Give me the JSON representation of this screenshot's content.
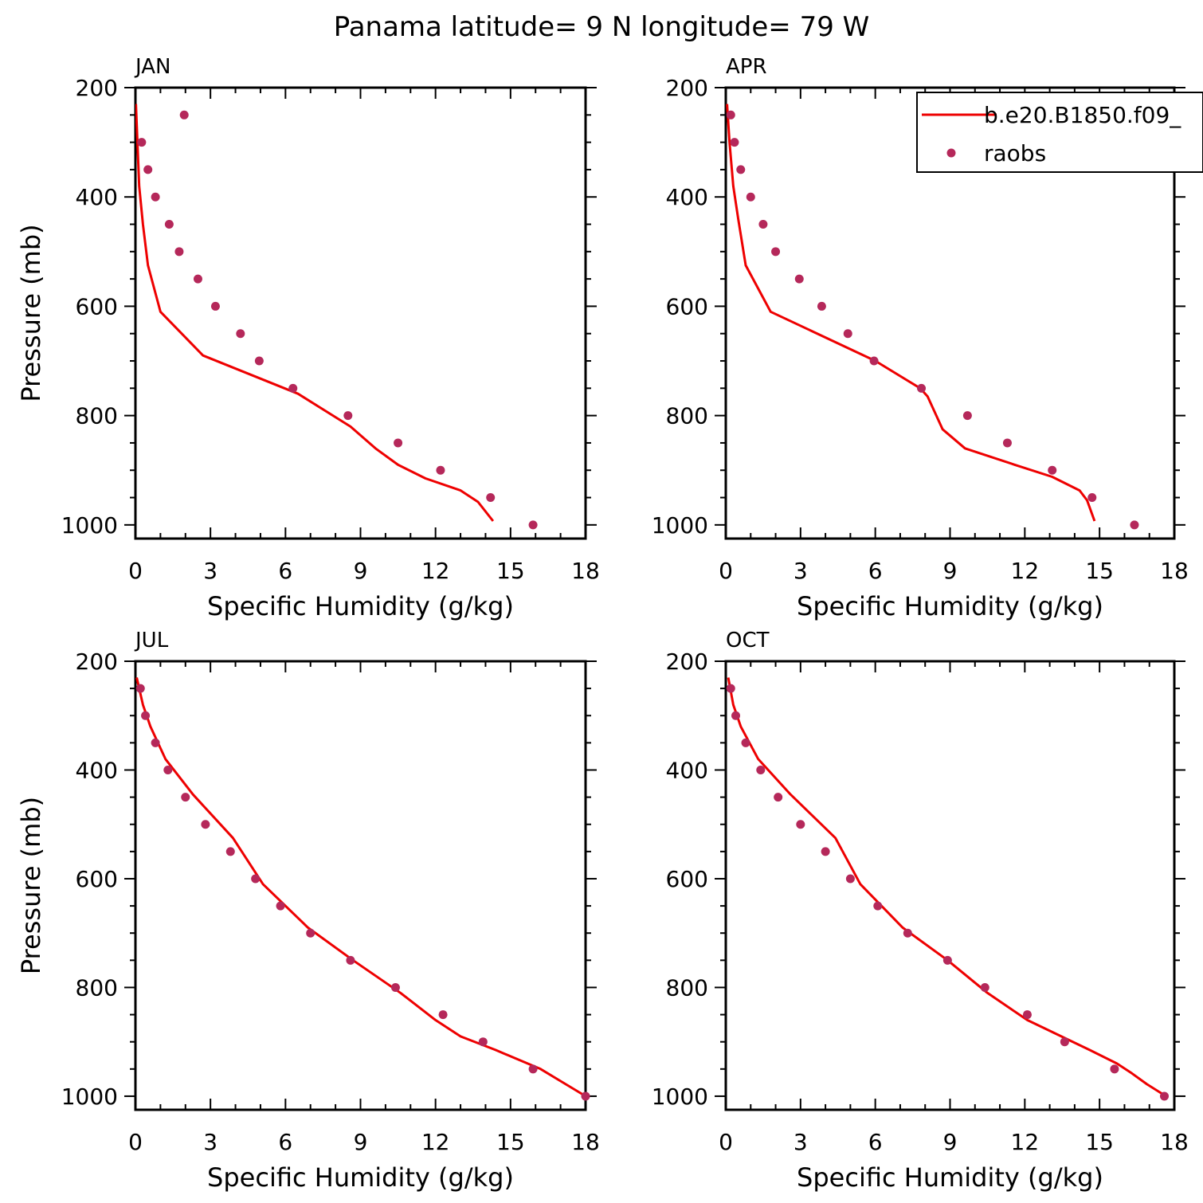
{
  "figure": {
    "title": "Panama  latitude= 9 N longitude= 79 W",
    "colors": {
      "model_line": "#ee0000",
      "obs_marker": "#b5285a",
      "axes": "#000000"
    }
  },
  "legend": {
    "placement": "top-right of APR panel",
    "items": [
      {
        "label": "b.e20.B1850.f09_",
        "style": "line",
        "color": "#ee0000"
      },
      {
        "label": "raobs",
        "style": "marker",
        "color": "#b5285a"
      }
    ]
  },
  "chart_data": [
    {
      "panel": "JAN",
      "type": "line",
      "xlabel": "Specific Humidity (g/kg)",
      "ylabel": "Pressure (mb)",
      "xlim": [
        0,
        18
      ],
      "ylim": [
        1025,
        200
      ],
      "y_inverted": true,
      "xticks": [
        0,
        3,
        6,
        9,
        12,
        15,
        18
      ],
      "yticks": [
        200,
        400,
        600,
        800,
        1000
      ],
      "series": [
        {
          "name": "b.e20.B1850.f09_",
          "kind": "line",
          "x": [
            0.02,
            0.08,
            0.15,
            0.3,
            0.5,
            1.0,
            2.7,
            6.5,
            8.6,
            9.6,
            10.5,
            11.6,
            13.0,
            13.7,
            14.3
          ],
          "y": [
            230,
            300,
            380,
            450,
            525,
            610,
            690,
            760,
            820,
            860,
            890,
            915,
            937,
            958,
            993
          ]
        },
        {
          "name": "raobs",
          "kind": "scatter",
          "x": [
            1.95,
            0.25,
            0.5,
            0.8,
            1.35,
            1.75,
            2.5,
            3.2,
            4.2,
            4.95,
            6.3,
            8.5,
            10.5,
            12.2,
            14.2,
            15.9
          ],
          "y": [
            250,
            300,
            350,
            400,
            450,
            500,
            550,
            600,
            650,
            700,
            750,
            800,
            850,
            900,
            950,
            1000
          ]
        }
      ]
    },
    {
      "panel": "APR",
      "type": "line",
      "xlabel": "Specific Humidity (g/kg)",
      "ylabel": "",
      "xlim": [
        0,
        18
      ],
      "ylim": [
        1025,
        200
      ],
      "y_inverted": true,
      "xticks": [
        0,
        3,
        6,
        9,
        12,
        15,
        18
      ],
      "yticks": [
        200,
        400,
        600,
        800,
        1000
      ],
      "series": [
        {
          "name": "b.e20.B1850.f09_",
          "kind": "line",
          "x": [
            0.05,
            0.15,
            0.3,
            0.5,
            0.8,
            1.8,
            6.0,
            7.8,
            8.1,
            8.7,
            9.6,
            11.6,
            13.1,
            14.2,
            14.5,
            14.8
          ],
          "y": [
            230,
            300,
            380,
            440,
            525,
            610,
            700,
            750,
            765,
            825,
            860,
            890,
            912,
            937,
            955,
            993
          ]
        },
        {
          "name": "raobs",
          "kind": "scatter",
          "x": [
            0.2,
            0.35,
            0.6,
            1.0,
            1.5,
            2.0,
            2.95,
            3.85,
            4.9,
            5.95,
            7.85,
            9.7,
            11.3,
            13.1,
            14.7,
            16.4
          ],
          "y": [
            250,
            300,
            350,
            400,
            450,
            500,
            550,
            600,
            650,
            700,
            750,
            800,
            850,
            900,
            950,
            1000
          ]
        }
      ]
    },
    {
      "panel": "JUL",
      "type": "line",
      "xlabel": "Specific Humidity (g/kg)",
      "ylabel": "Pressure (mb)",
      "xlim": [
        0,
        18
      ],
      "ylim": [
        1025,
        200
      ],
      "y_inverted": true,
      "xticks": [
        0,
        3,
        6,
        9,
        12,
        15,
        18
      ],
      "yticks": [
        200,
        400,
        600,
        800,
        1000
      ],
      "series": [
        {
          "name": "b.e20.B1850.f09_",
          "kind": "line",
          "x": [
            0.05,
            0.3,
            0.6,
            1.2,
            2.3,
            3.9,
            5.1,
            6.9,
            8.7,
            10.6,
            12.0,
            13.0,
            14.4,
            16.2,
            17.1,
            18.0
          ],
          "y": [
            230,
            280,
            320,
            380,
            445,
            525,
            610,
            690,
            750,
            810,
            860,
            890,
            915,
            950,
            975,
            1000
          ]
        },
        {
          "name": "raobs",
          "kind": "scatter",
          "x": [
            0.2,
            0.4,
            0.8,
            1.3,
            2.0,
            2.8,
            3.8,
            4.8,
            5.8,
            7.0,
            8.6,
            10.4,
            12.3,
            13.9,
            15.9,
            18.0
          ],
          "y": [
            250,
            300,
            350,
            400,
            450,
            500,
            550,
            600,
            650,
            700,
            750,
            800,
            850,
            900,
            950,
            1000
          ]
        }
      ]
    },
    {
      "panel": "OCT",
      "type": "line",
      "xlabel": "Specific Humidity (g/kg)",
      "ylabel": "",
      "xlim": [
        0,
        18
      ],
      "ylim": [
        1025,
        200
      ],
      "y_inverted": true,
      "xticks": [
        0,
        3,
        6,
        9,
        12,
        15,
        18
      ],
      "yticks": [
        200,
        400,
        600,
        800,
        1000
      ],
      "series": [
        {
          "name": "b.e20.B1850.f09_",
          "kind": "line",
          "x": [
            0.1,
            0.3,
            0.6,
            1.3,
            2.6,
            4.4,
            5.4,
            7.1,
            8.9,
            10.5,
            12.1,
            13.6,
            14.6,
            15.7,
            16.3,
            16.9,
            17.6
          ],
          "y": [
            230,
            280,
            320,
            380,
            445,
            525,
            610,
            690,
            750,
            810,
            860,
            893,
            915,
            940,
            958,
            978,
            998
          ]
        },
        {
          "name": "raobs",
          "kind": "scatter",
          "x": [
            0.2,
            0.4,
            0.8,
            1.4,
            2.1,
            3.0,
            4.0,
            5.0,
            6.1,
            7.3,
            8.9,
            10.4,
            12.1,
            13.6,
            15.6,
            17.6
          ],
          "y": [
            250,
            300,
            350,
            400,
            450,
            500,
            550,
            600,
            650,
            700,
            750,
            800,
            850,
            900,
            950,
            1000
          ]
        }
      ]
    }
  ]
}
